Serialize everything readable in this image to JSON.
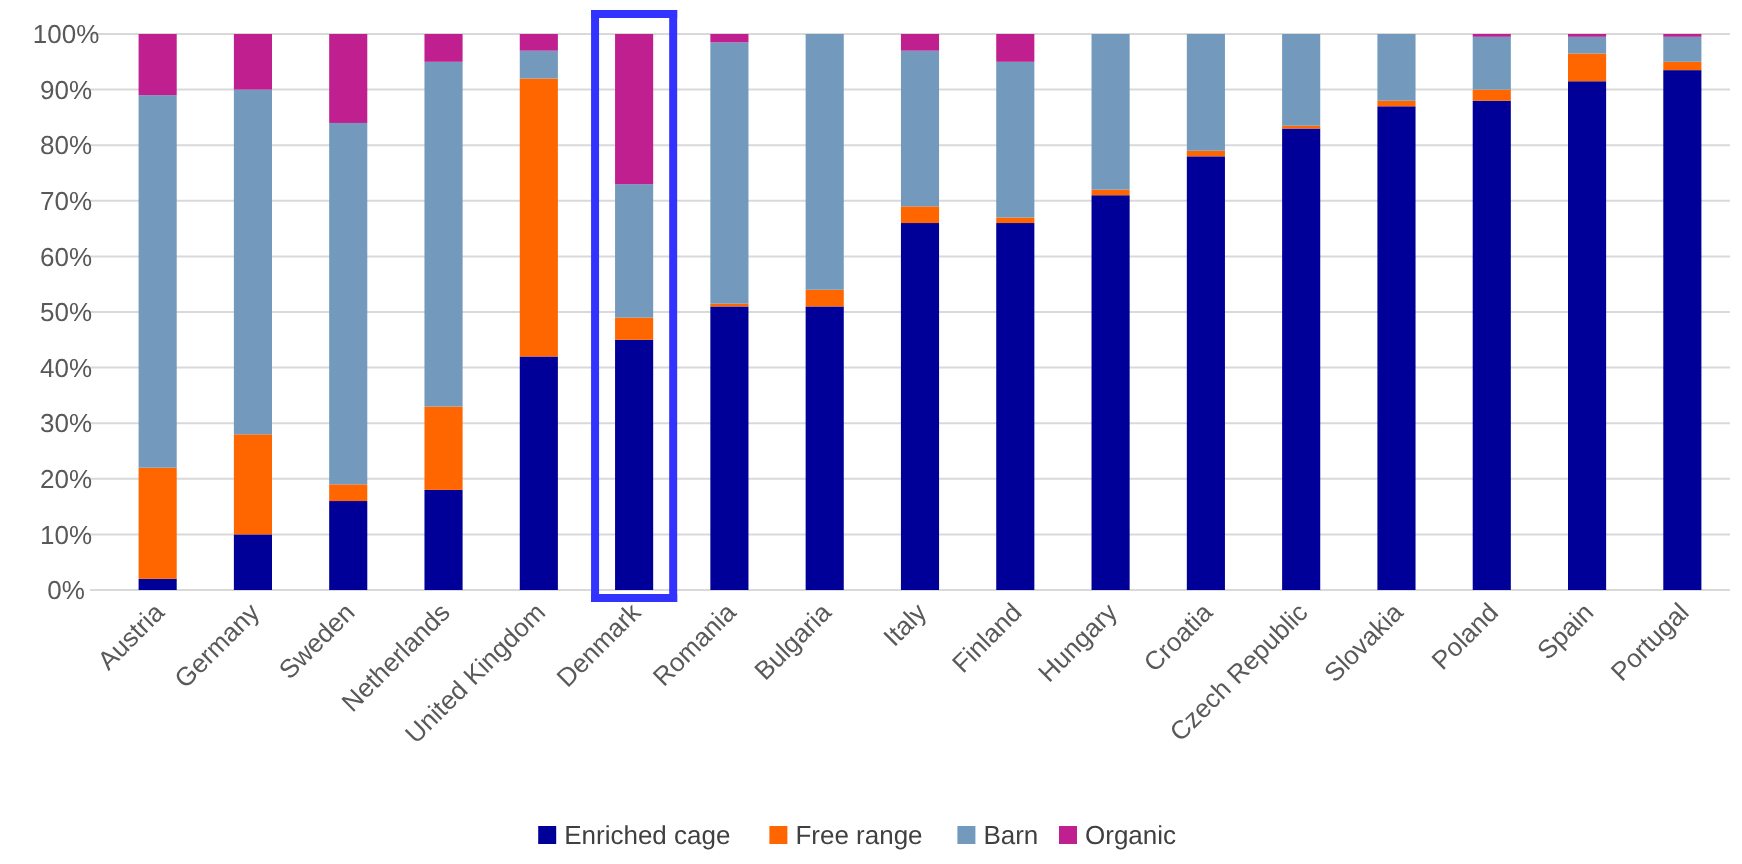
{
  "chart_data": {
    "type": "bar",
    "stacked": true,
    "categories": [
      "Austria",
      "Germany",
      "Sweden",
      "Netherlands",
      "United Kingdom",
      "Denmark",
      "Romania",
      "Bulgaria",
      "Italy",
      "Finland",
      "Hungary",
      "Croatia",
      "Czech Republic",
      "Slovakia",
      "Poland",
      "Spain",
      "Portugal"
    ],
    "series": [
      {
        "name": "Enriched cage",
        "color": "#000099",
        "values": [
          2,
          10,
          16,
          18,
          42,
          45,
          51,
          51,
          66,
          66,
          71,
          78,
          83,
          87,
          88,
          91.5,
          93.5
        ]
      },
      {
        "name": "Free range",
        "color": "#ff6600",
        "values": [
          20,
          18,
          3,
          15,
          50,
          4,
          0.5,
          3,
          3,
          1,
          1,
          1,
          0.5,
          1,
          2,
          5,
          1.5
        ]
      },
      {
        "name": "Barn",
        "color": "#7399bd",
        "values": [
          67,
          62,
          65,
          62,
          5,
          24,
          47,
          46,
          28,
          28,
          28,
          21,
          16.5,
          12,
          9.5,
          3,
          4.5
        ]
      },
      {
        "name": "Organic",
        "color": "#c0208f",
        "values": [
          11,
          10,
          16,
          5,
          3,
          27,
          1.5,
          0,
          3,
          5,
          0,
          0,
          0,
          0,
          0.5,
          0.5,
          0.5
        ]
      }
    ],
    "ylim": [
      0,
      100
    ],
    "yticks": [
      {
        "value": 0,
        "label": "0%"
      },
      {
        "value": 10,
        "label": "10%"
      },
      {
        "value": 20,
        "label": "20%"
      },
      {
        "value": 30,
        "label": "30%"
      },
      {
        "value": 40,
        "label": "40%"
      },
      {
        "value": 50,
        "label": "50%"
      },
      {
        "value": 60,
        "label": "60%"
      },
      {
        "value": 70,
        "label": "70%"
      },
      {
        "value": 80,
        "label": "80%"
      },
      {
        "value": 90,
        "label": "90%"
      },
      {
        "value": 100,
        "label": "100%"
      }
    ],
    "grid": "y",
    "legend": "bottom"
  }
}
